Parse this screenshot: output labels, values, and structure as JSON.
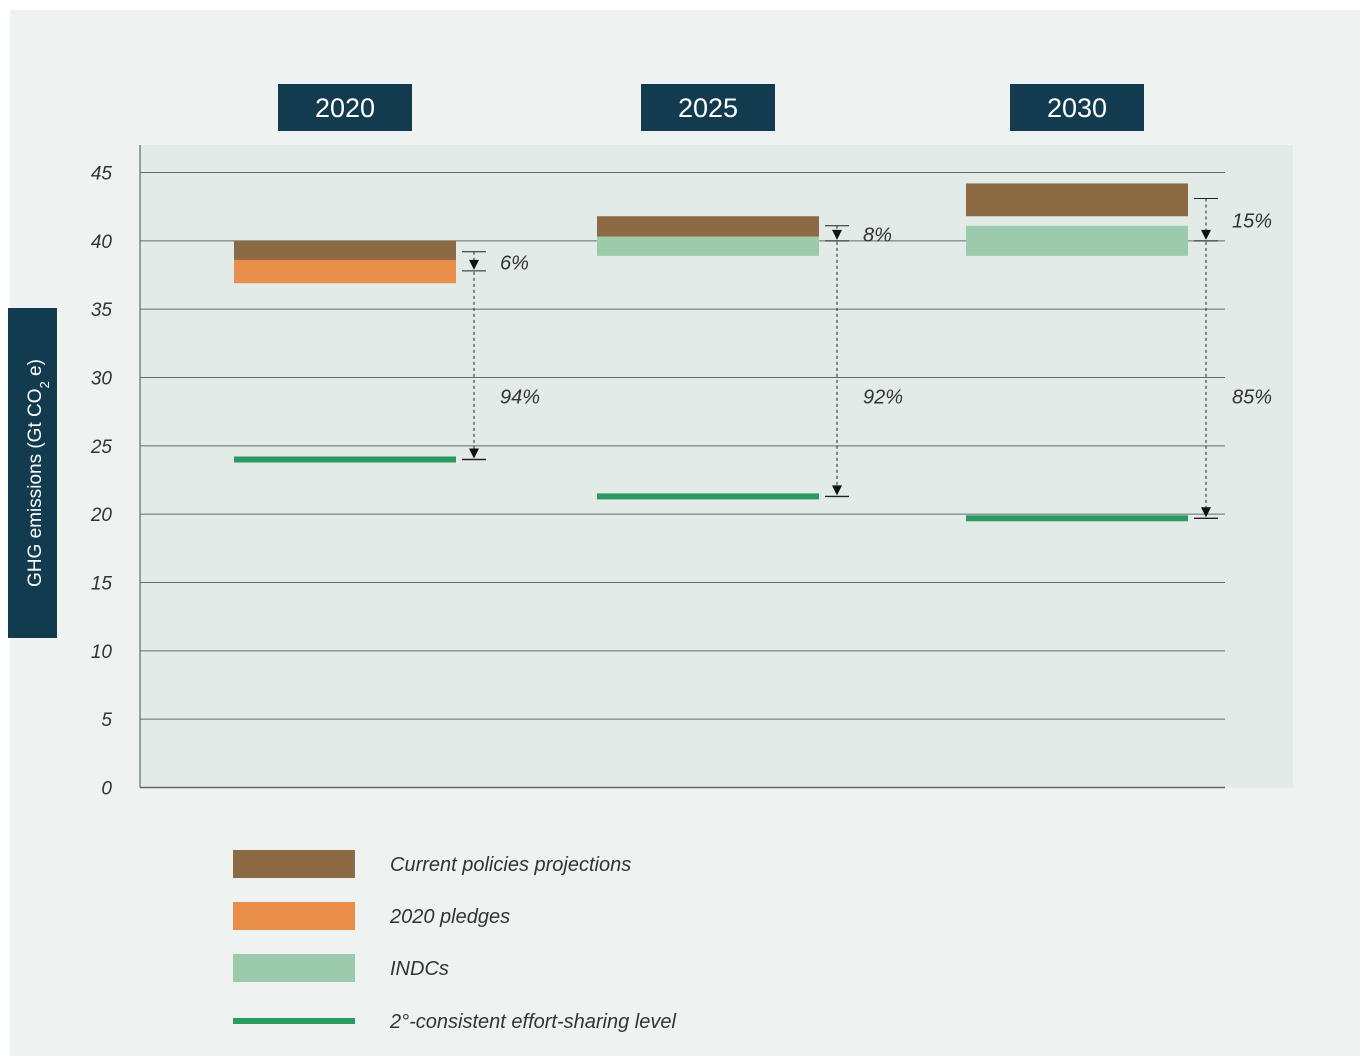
{
  "chart_data": {
    "type": "bar",
    "title": "",
    "ylabel": "GHG emissions (Gt CO2 e)",
    "ylabel_parts": {
      "before": "GHG emissions (Gt CO",
      "sub": "2",
      "after": " e)"
    },
    "xlabel": "",
    "ylim": [
      0,
      45
    ],
    "yticks": [
      0,
      5,
      10,
      15,
      20,
      25,
      30,
      35,
      40,
      45
    ],
    "grid": true,
    "categories": [
      "2020",
      "2025",
      "2030"
    ],
    "series": [
      {
        "name": "Current policies projections",
        "color": "#8b6a44",
        "kind": "range",
        "values": [
          [
            38.6,
            40.0
          ],
          [
            40.3,
            41.8
          ],
          [
            41.8,
            44.2
          ]
        ]
      },
      {
        "name": "2020 pledges",
        "color": "#e88d4a",
        "kind": "range",
        "values": [
          [
            36.9,
            38.6
          ],
          null,
          null
        ]
      },
      {
        "name": "INDCs",
        "color": "#9ccbac",
        "kind": "range",
        "values": [
          null,
          [
            38.9,
            40.3
          ],
          [
            38.9,
            41.1
          ]
        ]
      },
      {
        "name": "2°-consistent effort-sharing level",
        "color": "#2b9a62",
        "kind": "level",
        "values": [
          24.0,
          21.3,
          19.7
        ]
      }
    ],
    "gap_annotations": [
      {
        "category": "2020",
        "top": 39.2,
        "mid": 37.8,
        "bottom": 24.0,
        "upper_pct": "6%",
        "lower_pct": "94%"
      },
      {
        "category": "2025",
        "top": 41.1,
        "mid": 40.0,
        "bottom": 21.3,
        "upper_pct": "8%",
        "lower_pct": "92%"
      },
      {
        "category": "2030",
        "top": 43.1,
        "mid": 40.0,
        "bottom": 19.7,
        "upper_pct": "15%",
        "lower_pct": "85%"
      }
    ],
    "legend": {
      "position": "bottom",
      "entries": [
        "Current policies projections",
        "2020 pledges",
        "INDCs",
        "2°-consistent effort-sharing level"
      ]
    },
    "colors": {
      "year_box": "#133b4f",
      "ylabel_box": "#133b4f",
      "plot_bg": "#e2ebe8",
      "grid": "#5f6b6b"
    }
  }
}
